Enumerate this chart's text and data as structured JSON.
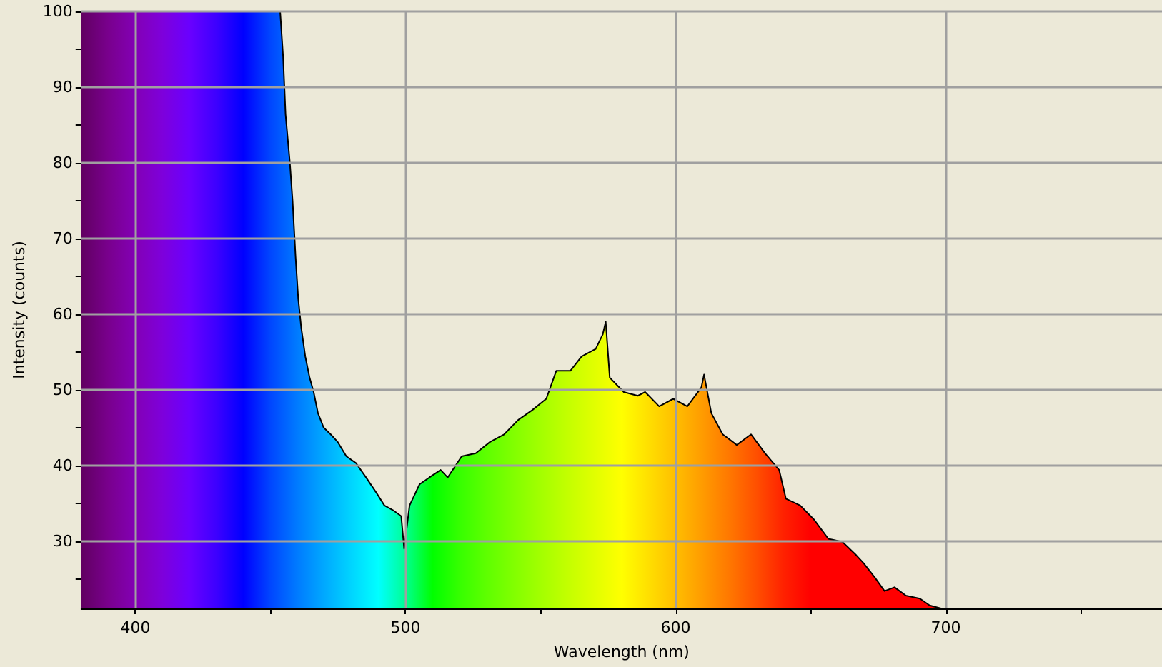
{
  "chart_data": {
    "type": "area",
    "xlabel": "Wavelength (nm)",
    "ylabel": "Intensity (counts)",
    "xlim": [
      380,
      780
    ],
    "xticks": [
      400,
      {
        "value": 450,
        "label": null
      },
      500,
      {
        "value": 550,
        "label": null
      },
      600,
      {
        "value": 650,
        "label": null
      },
      700,
      {
        "value": 750,
        "label": null
      }
    ],
    "ylim": [
      21.1,
      100
    ],
    "yticks": [
      {
        "value": 25,
        "label": null
      },
      30,
      {
        "value": 35,
        "label": null
      },
      40,
      {
        "value": 45,
        "label": null
      },
      50,
      {
        "value": 55,
        "label": null
      },
      60,
      {
        "value": 65,
        "label": null
      },
      70,
      {
        "value": 75,
        "label": null
      },
      80,
      {
        "value": 85,
        "label": null
      },
      90,
      {
        "value": 95,
        "label": null
      },
      100
    ],
    "grid": true,
    "marker": "none",
    "line_style": "solid",
    "series": [
      {
        "color": "#000000",
        "x": [
          380,
          453.6,
          454.7,
          455.6,
          457.2,
          458.2,
          459.3,
          460.3,
          461.4,
          462.9,
          464.5,
          466,
          467.6,
          469.7,
          472.3,
          474.9,
          478.1,
          481.7,
          485.4,
          489,
          492.2,
          495.3,
          498.4,
          499.5,
          501.5,
          505.2,
          508.8,
          513,
          515.6,
          520.8,
          526,
          531.3,
          536.5,
          541.7,
          546.9,
          552.1,
          555.8,
          561,
          565.2,
          570.4,
          573,
          574.1,
          575.6,
          580.8,
          586,
          588.7,
          593.9,
          599.1,
          604.3,
          609.5,
          610.5,
          613.2,
          617.4,
          622.6,
          627.9,
          633.1,
          638.3,
          640.8,
          646.1,
          651.3,
          656.5,
          661.7,
          664.3,
          666.9,
          669.5,
          673.7,
          677.3,
          681,
          685.2,
          690.4,
          694,
          698.2
        ],
        "values": [
          100,
          100,
          94,
          86.4,
          80,
          75,
          67.6,
          62,
          58.2,
          54.4,
          51.6,
          49.7,
          46.9,
          45,
          44.1,
          43.1,
          41.2,
          40.3,
          38.4,
          36.5,
          34.7,
          34.1,
          33.3,
          29,
          34.7,
          37.5,
          38.4,
          39.4,
          38.4,
          41.2,
          41.6,
          43.1,
          44.1,
          46,
          47.3,
          48.8,
          52.5,
          52.5,
          54.4,
          55.4,
          57.3,
          59,
          51.6,
          49.7,
          49.2,
          49.7,
          47.8,
          48.8,
          47.8,
          50.3,
          52,
          46.9,
          44.1,
          42.7,
          44.1,
          41.6,
          39.4,
          35.6,
          34.7,
          32.8,
          30.3,
          29.9,
          29,
          28.1,
          27.1,
          25.2,
          23.4,
          23.9,
          22.8,
          22.4,
          21.5,
          21.1
        ]
      }
    ]
  }
}
